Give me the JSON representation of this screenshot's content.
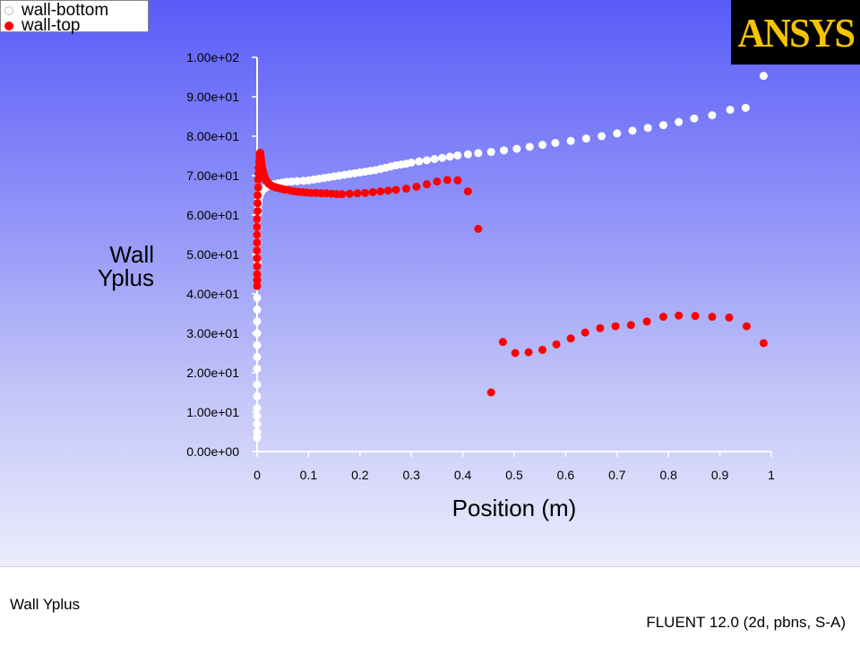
{
  "footer": {
    "title": "Wall Yplus",
    "version": "FLUENT 12.0 (2d, pbns, S-A)"
  },
  "logo": {
    "text": "ANSYS"
  },
  "chart_data": {
    "type": "scatter",
    "title": "",
    "xlabel": "Position (m)",
    "ylabel": [
      "Wall",
      "Yplus"
    ],
    "xlim": [
      0,
      1
    ],
    "ylim": [
      0,
      100
    ],
    "x_ticks": [
      "0",
      "0.1",
      "0.2",
      "0.3",
      "0.4",
      "0.5",
      "0.6",
      "0.7",
      "0.8",
      "0.9",
      "1"
    ],
    "y_ticks": [
      "0.00e+00",
      "1.00e+01",
      "2.00e+01",
      "3.00e+01",
      "4.00e+01",
      "5.00e+01",
      "6.00e+01",
      "7.00e+01",
      "8.00e+01",
      "9.00e+01",
      "1.00e+02"
    ],
    "grid": false,
    "legend_position": "top-left",
    "series": [
      {
        "name": "wall-bottom",
        "color": "#ffffff",
        "x": [
          0.0,
          0.0,
          0.0,
          0.0,
          0.0,
          0.0,
          0.0,
          0.0,
          0.0,
          0.0,
          0.0,
          0.0,
          0.0,
          0.0,
          0.0,
          0.0,
          0.001,
          0.001,
          0.001,
          0.001,
          0.001,
          0.001,
          0.002,
          0.002,
          0.002,
          0.003,
          0.003,
          0.004,
          0.005,
          0.006,
          0.007,
          0.008,
          0.01,
          0.012,
          0.015,
          0.018,
          0.022,
          0.027,
          0.033,
          0.04,
          0.048,
          0.057,
          0.067,
          0.078,
          0.09,
          0.1,
          0.11,
          0.12,
          0.13,
          0.14,
          0.15,
          0.16,
          0.17,
          0.18,
          0.19,
          0.2,
          0.21,
          0.22,
          0.23,
          0.24,
          0.25,
          0.26,
          0.27,
          0.28,
          0.29,
          0.3,
          0.315,
          0.33,
          0.345,
          0.36,
          0.375,
          0.39,
          0.41,
          0.43,
          0.455,
          0.48,
          0.505,
          0.53,
          0.555,
          0.58,
          0.61,
          0.64,
          0.67,
          0.7,
          0.73,
          0.76,
          0.79,
          0.82,
          0.85,
          0.885,
          0.92,
          0.95,
          0.985
        ],
        "y": [
          3.5,
          5,
          7,
          9,
          11,
          14,
          17,
          21,
          24,
          27,
          30,
          33,
          36,
          39,
          42,
          45,
          48,
          51,
          53,
          55,
          57,
          59,
          60.5,
          61.5,
          62.5,
          63.3,
          64,
          64.5,
          65,
          65.3,
          65.6,
          65.9,
          66.2,
          66.5,
          66.8,
          67.1,
          67.4,
          67.6,
          67.8,
          68,
          68.2,
          68.4,
          68.5,
          68.6,
          68.7,
          68.8,
          69,
          69.2,
          69.4,
          69.6,
          69.8,
          70,
          70.2,
          70.4,
          70.6,
          70.8,
          71,
          71.2,
          71.4,
          71.7,
          72,
          72.3,
          72.6,
          72.8,
          73,
          73.3,
          73.6,
          73.9,
          74.2,
          74.5,
          74.8,
          75.1,
          75.4,
          75.7,
          76,
          76.4,
          76.8,
          77.3,
          77.8,
          78.3,
          78.8,
          79.4,
          80,
          80.7,
          81.4,
          82.1,
          82.8,
          83.6,
          84.5,
          85.3,
          86.7,
          87.2,
          95.3
        ]
      },
      {
        "name": "wall-top",
        "color": "#ff0000",
        "x": [
          0.0,
          0.0,
          0.0,
          0.0,
          0.0,
          0.0,
          0.0,
          0.0,
          0.0,
          0.0,
          0.001,
          0.001,
          0.001,
          0.002,
          0.002,
          0.003,
          0.003,
          0.004,
          0.005,
          0.005,
          0.006,
          0.006,
          0.007,
          0.008,
          0.009,
          0.01,
          0.012,
          0.014,
          0.016,
          0.019,
          0.022,
          0.026,
          0.03,
          0.035,
          0.04,
          0.046,
          0.052,
          0.058,
          0.065,
          0.072,
          0.08,
          0.088,
          0.096,
          0.105,
          0.115,
          0.125,
          0.135,
          0.145,
          0.155,
          0.165,
          0.18,
          0.195,
          0.21,
          0.225,
          0.24,
          0.255,
          0.27,
          0.29,
          0.31,
          0.33,
          0.35,
          0.37,
          0.39,
          0.41,
          0.43,
          0.455,
          0.478,
          0.502,
          0.528,
          0.555,
          0.582,
          0.61,
          0.638,
          0.667,
          0.697,
          0.727,
          0.758,
          0.79,
          0.82,
          0.852,
          0.885,
          0.918,
          0.952,
          0.985
        ],
        "y": [
          42,
          43.5,
          45,
          47,
          49,
          51,
          53,
          55,
          57,
          59,
          61,
          63,
          65,
          67,
          69,
          70.5,
          72,
          73.5,
          74.5,
          75.5,
          75.8,
          75.5,
          75,
          74,
          73,
          72,
          71,
          70,
          69.2,
          68.5,
          68,
          67.6,
          67.3,
          67.1,
          66.9,
          66.7,
          66.5,
          66.4,
          66.2,
          66,
          65.9,
          65.8,
          65.7,
          65.6,
          65.6,
          65.5,
          65.5,
          65.4,
          65.3,
          65.3,
          65.4,
          65.5,
          65.6,
          65.8,
          66,
          66.2,
          66.4,
          66.7,
          67.2,
          67.8,
          68.5,
          68.9,
          68.8,
          66,
          56.5,
          15,
          27.8,
          25,
          25.2,
          25.8,
          27.2,
          28.7,
          30.2,
          31.3,
          31.8,
          32.1,
          33,
          34.2,
          34.5,
          34.4,
          34.2,
          34,
          31.8,
          27.5
        ]
      }
    ]
  }
}
